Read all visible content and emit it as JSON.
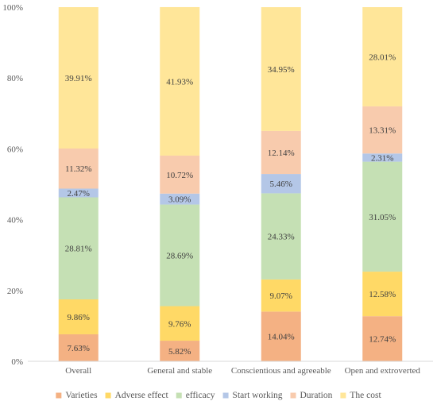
{
  "chart_data": {
    "type": "bar",
    "stacked": true,
    "percent_stacked": true,
    "categories": [
      "Overall",
      "General and stable",
      "Conscientious and agreeable",
      "Open and extroverted"
    ],
    "series": [
      {
        "name": "Varieties",
        "color": "#F4B183",
        "values": [
          7.63,
          5.82,
          14.04,
          12.74
        ],
        "labels": [
          "7.63%",
          "5.82%",
          "14.04%",
          "12.74%"
        ]
      },
      {
        "name": "Adverse effect",
        "color": "#FFD966",
        "values": [
          9.86,
          9.76,
          9.07,
          12.58
        ],
        "labels": [
          "9.86%",
          "9.76%",
          "9.07%",
          "12.58%"
        ]
      },
      {
        "name": "efficacy",
        "color": "#C5E0B4",
        "values": [
          28.81,
          28.69,
          24.33,
          31.05
        ],
        "labels": [
          "28.81%",
          "28.69%",
          "24.33%",
          "31.05%"
        ]
      },
      {
        "name": "Start working",
        "color": "#B4C7E7",
        "values": [
          2.47,
          3.09,
          5.46,
          2.31
        ],
        "labels": [
          "2.47%",
          "3.09%",
          "5.46%",
          "2.31%"
        ]
      },
      {
        "name": "Duration",
        "color": "#F8CBAD",
        "values": [
          11.32,
          10.72,
          12.14,
          13.31
        ],
        "labels": [
          "11.32%",
          "10.72%",
          "12.14%",
          "13.31%"
        ]
      },
      {
        "name": "The cost",
        "color": "#FFE699",
        "values": [
          39.91,
          41.93,
          34.95,
          28.01
        ],
        "labels": [
          "39.91%",
          "41.93%",
          "34.95%",
          "28.01%"
        ]
      }
    ],
    "ylim": [
      0,
      100
    ],
    "yticks": [
      "0%",
      "20%",
      "40%",
      "60%",
      "80%",
      "100%"
    ],
    "ytick_values": [
      0,
      20,
      40,
      60,
      80,
      100
    ],
    "grid": false,
    "legend_position": "bottom",
    "axis_color": "#D9D9D9"
  }
}
